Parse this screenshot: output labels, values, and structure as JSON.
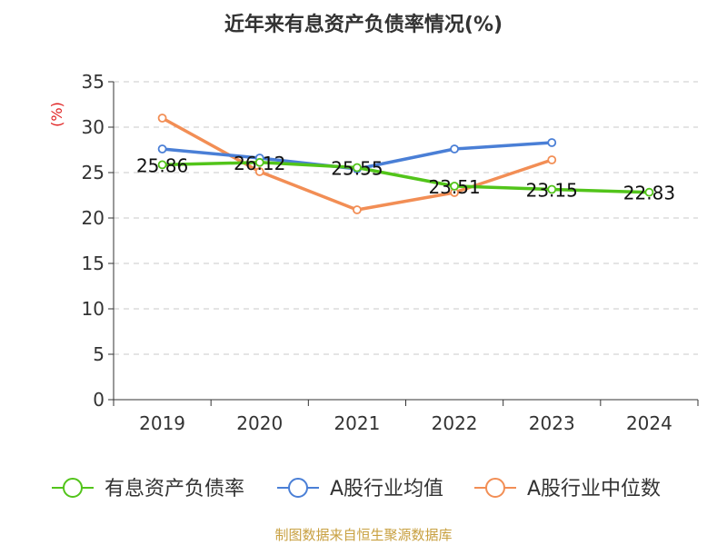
{
  "chart_data": {
    "type": "line",
    "title": "近年来有息资产负债率情况(%)",
    "ylabel": "(%)",
    "xlabel": "",
    "categories": [
      "2019",
      "2020",
      "2021",
      "2022",
      "2023",
      "2024"
    ],
    "ylim": [
      0,
      35
    ],
    "yticks": [
      0,
      5,
      10,
      15,
      20,
      25,
      30,
      35
    ],
    "grid": true,
    "legend_position": "bottom",
    "series": [
      {
        "name": "有息资产负债率",
        "color": "#52c41a",
        "values": [
          25.86,
          26.12,
          25.55,
          23.51,
          23.15,
          22.83
        ],
        "labels": [
          "25.86",
          "26.12",
          "25.55",
          "23.51",
          "23.15",
          "22.83"
        ]
      },
      {
        "name": "A股行业均值",
        "color": "#4a7fd6",
        "values": [
          27.6,
          26.6,
          25.4,
          27.6,
          28.3,
          null
        ]
      },
      {
        "name": "A股行业中位数",
        "color": "#f28e55",
        "values": [
          31.0,
          25.1,
          20.9,
          22.8,
          26.4,
          null
        ]
      }
    ],
    "source": "制图数据来自恒生聚源数据库"
  }
}
